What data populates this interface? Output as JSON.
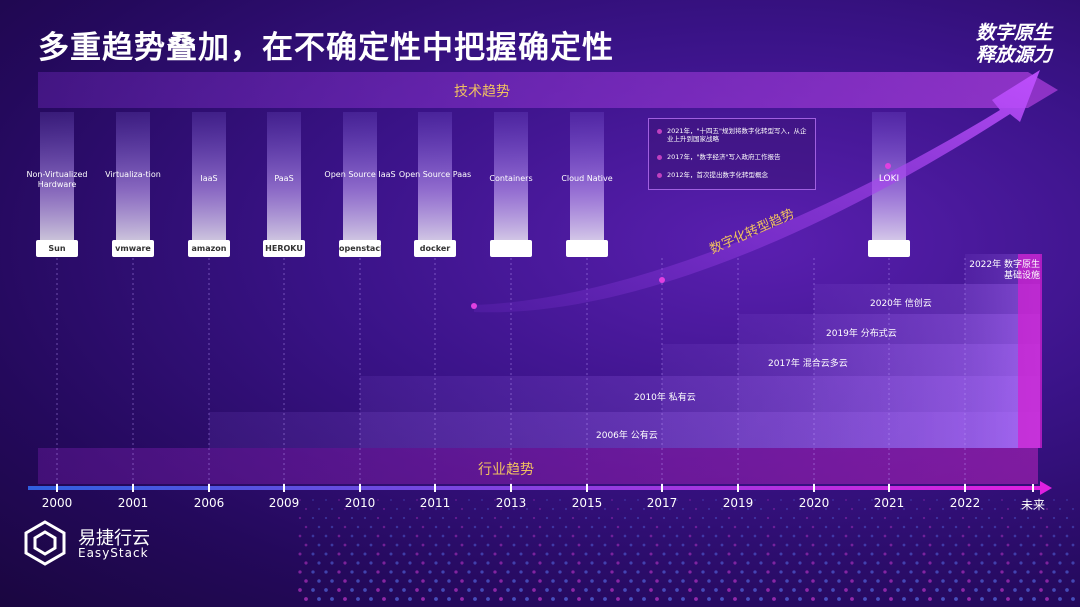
{
  "title": "多重趋势叠加，在不确定性中把握确定性",
  "brand_line1": "数字原生",
  "brand_line2": "释放源力",
  "tech_trend_label": "技术趋势",
  "industry_trend_label": "行业趋势",
  "digital_trend_label": "数字化转型趋势",
  "columns": [
    {
      "label": "Non-Virtualized Hardware",
      "logo": "Sun"
    },
    {
      "label": "Virtualiza-tion",
      "logo": "vmware"
    },
    {
      "label": "IaaS",
      "logo": "amazon"
    },
    {
      "label": "PaaS",
      "logo": "HEROKU"
    },
    {
      "label": "Open Source IaaS",
      "logo": "openstack"
    },
    {
      "label": "Open Source Paas",
      "logo": "docker"
    },
    {
      "label": "Containers",
      "logo": ""
    },
    {
      "label": "Cloud Native",
      "logo": ""
    },
    {
      "label": "LOKI",
      "logo": ""
    }
  ],
  "years": [
    "2000",
    "2001",
    "2006",
    "2009",
    "2010",
    "2011",
    "2013",
    "2015",
    "2017",
    "2019",
    "2020",
    "2021",
    "2022",
    "未来"
  ],
  "legend": [
    "2021年，\"十四五\"规划将数字化转型写入，从企业上升到国家战略",
    "2017年，\"数字经济\"写入政府工作报告",
    "2012年，首次提出数字化转型概念"
  ],
  "stairs": [
    {
      "label": "2006年 公有云"
    },
    {
      "label": "2010年 私有云"
    },
    {
      "label": "2017年 混合云多云"
    },
    {
      "label": "2019年 分布式云"
    },
    {
      "label": "2020年 信创云"
    },
    {
      "label": "2022年 数字原生基础设施"
    }
  ],
  "footer": {
    "name_cn": "易捷行云",
    "name_en": "EasyStack"
  },
  "colors": {
    "accent": "#c020d0",
    "gold": "#f0c060",
    "axis": "#c060ff"
  }
}
